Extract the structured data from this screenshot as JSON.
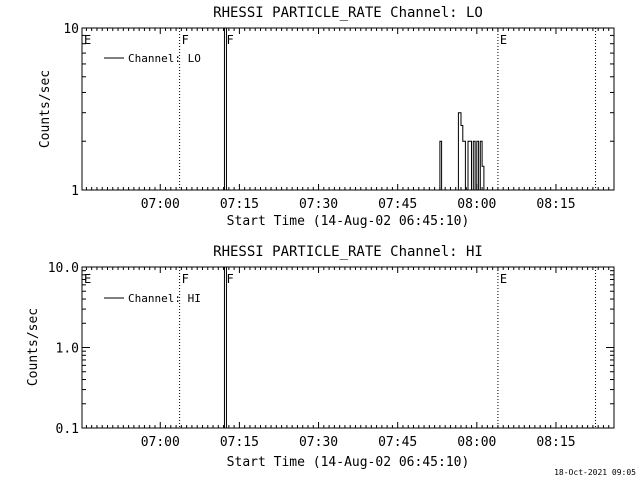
{
  "footer_timestamp": "18-Oct-2021 09:05",
  "chart_data": [
    {
      "type": "line",
      "title": "RHESSI PARTICLE_RATE Channel: LO",
      "xlabel": "Start Time (14-Aug-02 06:45:10)",
      "ylabel": "Counts/sec",
      "yscale": "log",
      "ylim": [
        1,
        10
      ],
      "ytick_values": [
        1,
        10
      ],
      "ytick_labels": [
        "1",
        "10"
      ],
      "xlim": [
        "06:45:10",
        "08:26:00"
      ],
      "xtick_values": [
        "07:00",
        "07:15",
        "07:30",
        "07:45",
        "08:00",
        "08:15"
      ],
      "xtick_labels": [
        "07:00",
        "07:15",
        "07:30",
        "07:45",
        "08:00",
        "08:15"
      ],
      "legend": {
        "position": "top-left",
        "entries": [
          "Channel: LO"
        ]
      },
      "grid": false,
      "markers": [
        {
          "time": "06:45:10",
          "label": "E",
          "style": "dotted"
        },
        {
          "time": "07:03:40",
          "label": "F",
          "style": "dotted"
        },
        {
          "time": "07:12:10",
          "label": "F",
          "style": "solid"
        },
        {
          "time": "08:04:00",
          "label": "E",
          "style": "dotted"
        },
        {
          "time": "08:22:30",
          "label": "",
          "style": "dotted"
        }
      ],
      "series": [
        {
          "x": [
            "07:53:00",
            "07:53:00",
            "07:53:20",
            "07:53:20",
            "07:56:30",
            "07:56:30",
            "07:57:00",
            "07:57:00",
            "07:57:20",
            "07:57:20",
            "07:57:50",
            "07:57:50",
            "07:58:20",
            "07:58:20",
            "07:59:00",
            "07:59:00",
            "07:59:20",
            "07:59:20",
            "07:59:40",
            "07:59:40",
            "08:00:00",
            "08:00:00",
            "08:00:20",
            "08:00:20",
            "08:00:40",
            "08:00:40",
            "08:01:00",
            "08:01:00",
            "08:01:20",
            "08:01:20"
          ],
          "y": [
            1,
            2,
            2,
            1,
            1,
            3,
            3,
            2.5,
            2.5,
            2,
            2,
            1,
            1,
            2,
            2,
            1,
            1,
            2,
            2,
            1,
            1,
            2,
            2,
            1,
            1,
            2,
            2,
            1.4,
            1.4,
            1
          ]
        }
      ]
    },
    {
      "type": "line",
      "title": "RHESSI PARTICLE_RATE Channel: HI",
      "xlabel": "Start Time (14-Aug-02 06:45:10)",
      "ylabel": "Counts/sec",
      "yscale": "log",
      "ylim": [
        0.1,
        10
      ],
      "ytick_values": [
        0.1,
        1,
        10
      ],
      "ytick_labels": [
        "0.1",
        "1.0",
        "10.0"
      ],
      "xlim": [
        "06:45:10",
        "08:26:00"
      ],
      "xtick_values": [
        "07:00",
        "07:15",
        "07:30",
        "07:45",
        "08:00",
        "08:15"
      ],
      "xtick_labels": [
        "07:00",
        "07:15",
        "07:30",
        "07:45",
        "08:00",
        "08:15"
      ],
      "legend": {
        "position": "top-left",
        "entries": [
          "Channel: HI"
        ]
      },
      "grid": false,
      "markers": [
        {
          "time": "06:45:10",
          "label": "E",
          "style": "dotted"
        },
        {
          "time": "07:03:40",
          "label": "F",
          "style": "dotted"
        },
        {
          "time": "07:12:10",
          "label": "F",
          "style": "solid"
        },
        {
          "time": "08:04:00",
          "label": "E",
          "style": "dotted"
        },
        {
          "time": "08:22:30",
          "label": "",
          "style": "dotted"
        }
      ],
      "series": []
    }
  ]
}
